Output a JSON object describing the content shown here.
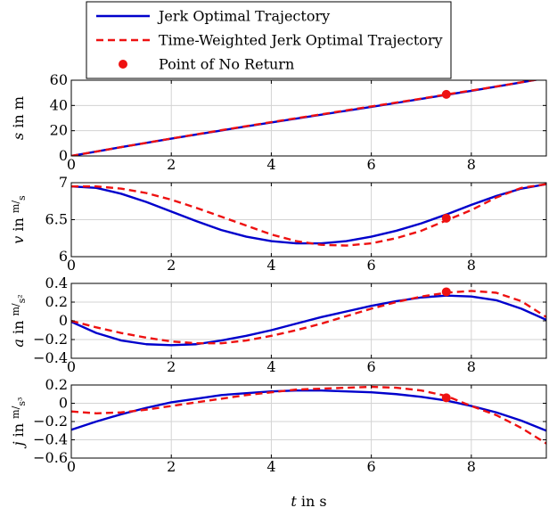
{
  "chart_data": {
    "type": "line",
    "legend": {
      "placement": "top",
      "entries": [
        {
          "key": "jerk",
          "label": "Jerk Optimal Trajectory",
          "color": "#0000cc",
          "style": "solid"
        },
        {
          "key": "weighted",
          "label": "Time-Weighted Jerk Optimal Trajectory",
          "color": "#ee1111",
          "style": "dashed"
        },
        {
          "key": "pnr",
          "label": "Point of No Return",
          "color": "#ee1111",
          "style": "marker"
        }
      ]
    },
    "xlabel": {
      "var": "t",
      "rest": " in s"
    },
    "xlim": [
      0,
      9.5
    ],
    "xticks": [
      0,
      2,
      4,
      6,
      8
    ],
    "grid": true,
    "point_of_no_return_t": 7.5,
    "subplots": [
      {
        "id": "s",
        "ylabel": {
          "var": "s",
          "rest": " in m"
        },
        "ylim": [
          0,
          60
        ],
        "yticks": [
          0,
          20,
          40,
          60
        ],
        "ytick_labels": [
          "0",
          "20",
          "40",
          "60"
        ],
        "pnr_y": 48.8,
        "series": [
          {
            "key": "jerk",
            "x": [
              0,
              0.5,
              1,
              1.5,
              2,
              2.5,
              3,
              3.5,
              4,
              4.5,
              5,
              5.5,
              6,
              6.5,
              7,
              7.5,
              8,
              8.5,
              9,
              9.5
            ],
            "y": [
              0,
              3.5,
              7,
              10.4,
              13.7,
              17,
              20.2,
              23.4,
              26.5,
              29.6,
              32.7,
              35.8,
              38.9,
              42,
              45.2,
              48.4,
              51.6,
              54.9,
              58.3,
              61.8
            ]
          },
          {
            "key": "weighted",
            "x": [
              0,
              0.5,
              1,
              1.5,
              2,
              2.5,
              3,
              3.5,
              4,
              4.5,
              5,
              5.5,
              6,
              6.5,
              7,
              7.5,
              8,
              8.5,
              9,
              9.5
            ],
            "y": [
              0,
              3.5,
              7,
              10.4,
              13.8,
              17.1,
              20.4,
              23.6,
              26.8,
              29.9,
              33,
              36.1,
              39.2,
              42.3,
              45.4,
              48.7,
              51.8,
              55,
              58.4,
              61.8
            ]
          }
        ]
      },
      {
        "id": "v",
        "ylabel": {
          "var": "v",
          "rest": " in ",
          "unit_num": "m",
          "unit_den": "s"
        },
        "ylim": [
          6,
          7
        ],
        "yticks": [
          6,
          6.5,
          7
        ],
        "ytick_labels": [
          "6",
          "6.5",
          "7"
        ],
        "pnr_y": 6.52,
        "series": [
          {
            "key": "jerk",
            "x": [
              0,
              0.5,
              1,
              1.5,
              2,
              2.5,
              3,
              3.5,
              4,
              4.5,
              5,
              5.5,
              6,
              6.5,
              7,
              7.5,
              8,
              8.5,
              9,
              9.5
            ],
            "y": [
              6.95,
              6.93,
              6.85,
              6.74,
              6.61,
              6.48,
              6.36,
              6.27,
              6.21,
              6.18,
              6.18,
              6.21,
              6.27,
              6.35,
              6.45,
              6.57,
              6.7,
              6.82,
              6.92,
              6.98
            ]
          },
          {
            "key": "weighted",
            "x": [
              0,
              0.5,
              1,
              1.5,
              2,
              2.5,
              3,
              3.5,
              4,
              4.5,
              5,
              5.5,
              6,
              6.5,
              7,
              7.5,
              8,
              8.5,
              9,
              9.5
            ],
            "y": [
              6.95,
              6.95,
              6.92,
              6.86,
              6.77,
              6.66,
              6.54,
              6.42,
              6.3,
              6.21,
              6.16,
              6.15,
              6.18,
              6.25,
              6.35,
              6.49,
              6.63,
              6.8,
              6.93,
              6.98
            ]
          }
        ]
      },
      {
        "id": "a",
        "ylabel": {
          "var": "a",
          "rest": " in ",
          "unit_num": "m",
          "unit_den": "s²"
        },
        "ylim": [
          -0.4,
          0.4
        ],
        "yticks": [
          -0.4,
          -0.2,
          0,
          0.2,
          0.4
        ],
        "ytick_labels": [
          "−0.4",
          "−0.2",
          "0",
          "0.2",
          "0.4"
        ],
        "pnr_y": 0.31,
        "series": [
          {
            "key": "jerk",
            "x": [
              0,
              0.5,
              1,
              1.5,
              2,
              2.5,
              3,
              3.5,
              4,
              4.5,
              5,
              5.5,
              6,
              6.5,
              7,
              7.5,
              8,
              8.5,
              9,
              9.5
            ],
            "y": [
              -0.01,
              -0.13,
              -0.21,
              -0.25,
              -0.26,
              -0.25,
              -0.21,
              -0.16,
              -0.1,
              -0.03,
              0.04,
              0.1,
              0.16,
              0.21,
              0.25,
              0.27,
              0.26,
              0.22,
              0.13,
              0.01
            ]
          },
          {
            "key": "weighted",
            "x": [
              0,
              0.5,
              1,
              1.5,
              2,
              2.5,
              3,
              3.5,
              4,
              4.5,
              5,
              5.5,
              6,
              6.5,
              7,
              7.5,
              8,
              8.5,
              9,
              9.5
            ],
            "y": [
              0,
              -0.07,
              -0.13,
              -0.18,
              -0.22,
              -0.24,
              -0.24,
              -0.21,
              -0.16,
              -0.1,
              -0.03,
              0.05,
              0.13,
              0.2,
              0.26,
              0.3,
              0.32,
              0.3,
              0.21,
              0.04
            ]
          }
        ]
      },
      {
        "id": "j",
        "ylabel": {
          "var": "j",
          "rest": " in ",
          "unit_num": "m",
          "unit_den": "s³"
        },
        "ylim": [
          -0.6,
          0.2
        ],
        "yticks": [
          -0.6,
          -0.4,
          -0.2,
          0,
          0.2
        ],
        "ytick_labels": [
          "−0.6",
          "−0.4",
          "−0.2",
          "0",
          "0.2"
        ],
        "pnr_y": 0.06,
        "series": [
          {
            "key": "jerk",
            "x": [
              0,
              0.5,
              1,
              1.5,
              2,
              2.5,
              3,
              3.5,
              4,
              4.5,
              5,
              5.5,
              6,
              6.5,
              7,
              7.5,
              8,
              8.5,
              9,
              9.5
            ],
            "y": [
              -0.29,
              -0.2,
              -0.12,
              -0.05,
              0.01,
              0.05,
              0.09,
              0.11,
              0.13,
              0.14,
              0.14,
              0.13,
              0.12,
              0.1,
              0.07,
              0.03,
              -0.03,
              -0.1,
              -0.19,
              -0.3
            ]
          },
          {
            "key": "weighted",
            "x": [
              0,
              0.5,
              1,
              1.5,
              2,
              2.5,
              3,
              3.5,
              4,
              4.5,
              5,
              5.5,
              6,
              6.5,
              7,
              7.5,
              8,
              8.5,
              9,
              9.5
            ],
            "y": [
              -0.09,
              -0.11,
              -0.1,
              -0.07,
              -0.03,
              0.01,
              0.05,
              0.09,
              0.12,
              0.15,
              0.16,
              0.17,
              0.18,
              0.17,
              0.14,
              0.08,
              -0.03,
              -0.13,
              -0.27,
              -0.44
            ]
          }
        ]
      }
    ]
  }
}
